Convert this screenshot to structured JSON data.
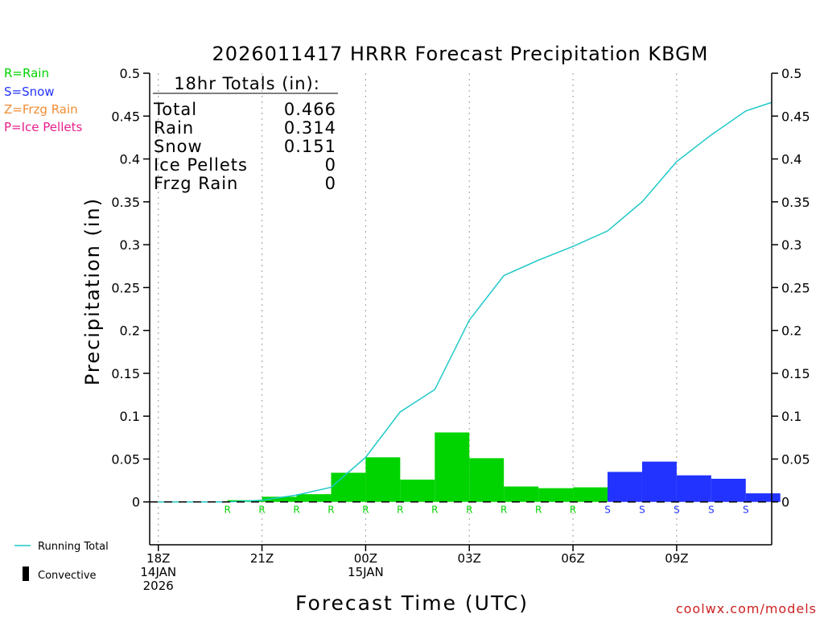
{
  "colors": {
    "rain": "#00d400",
    "snow": "#2233ff",
    "frzg": "#f08c32",
    "ice": "#e8208c",
    "running_total": "#1ec8c8",
    "watermark": "#cc2222",
    "grid": "#aaaaaa",
    "axis": "#000000"
  },
  "legend": {
    "rain": "R=Rain",
    "snow": "S=Snow",
    "frzg": "Z=Frzg Rain",
    "ice": "P=Ice Pellets",
    "running_total": "Running Total",
    "convective": "Convective"
  },
  "watermark": "coolwx.com/models",
  "totals": {
    "header": "18hr Totals (in):",
    "rows": [
      {
        "label": "Total",
        "value": "0.466"
      },
      {
        "label": "Rain",
        "value": "0.314"
      },
      {
        "label": "Snow",
        "value": "0.151"
      },
      {
        "label": "Ice Pellets",
        "value": "0"
      },
      {
        "label": "Frzg Rain",
        "value": "0"
      }
    ]
  },
  "chart_data": {
    "type": "bar",
    "title": "2026011417 HRRR Forecast Precipitation KBGM",
    "xlabel": "Forecast Time (UTC)",
    "ylabel": "Precipitation (in)",
    "ylim": [
      -0.05,
      0.5
    ],
    "yticks": [
      0,
      0.05,
      0.1,
      0.15,
      0.2,
      0.25,
      0.3,
      0.35,
      0.4,
      0.45,
      0.5
    ],
    "ytick_labels": [
      "0",
      "0.05",
      "0.1",
      "0.15",
      "0.2",
      "0.25",
      "0.3",
      "0.35",
      "0.4",
      "0.45",
      "0.5"
    ],
    "xlim": [
      -0.25,
      17.75
    ],
    "x_ticks": [
      {
        "x": 0,
        "lines": [
          "18Z",
          "14JAN",
          "2026"
        ]
      },
      {
        "x": 3,
        "lines": [
          "21Z"
        ]
      },
      {
        "x": 6,
        "lines": [
          "00Z",
          "15JAN"
        ]
      },
      {
        "x": 9,
        "lines": [
          "03Z"
        ]
      },
      {
        "x": 12,
        "lines": [
          "06Z"
        ]
      },
      {
        "x": 15,
        "lines": [
          "09Z"
        ]
      }
    ],
    "hours": [
      1,
      2,
      3,
      4,
      5,
      6,
      7,
      8,
      9,
      10,
      11,
      12,
      13,
      14,
      15,
      16,
      17,
      18
    ],
    "hourly_precip": [
      0.0,
      0.0,
      0.002,
      0.006,
      0.009,
      0.034,
      0.052,
      0.026,
      0.081,
      0.051,
      0.018,
      0.016,
      0.017,
      0.035,
      0.047,
      0.031,
      0.027,
      0.01
    ],
    "ptype": [
      "",
      "",
      "R",
      "R",
      "R",
      "R",
      "R",
      "R",
      "R",
      "R",
      "R",
      "R",
      "R",
      "S",
      "S",
      "S",
      "S",
      "S"
    ],
    "running_total_x": [
      0,
      1,
      2,
      3,
      4,
      5,
      6,
      7,
      8,
      9,
      10,
      11,
      12,
      13,
      14,
      15,
      16,
      17,
      17.75
    ],
    "running_total": [
      0,
      0.0,
      0.0,
      0.002,
      0.008,
      0.017,
      0.052,
      0.105,
      0.131,
      0.212,
      0.264,
      0.282,
      0.298,
      0.316,
      0.35,
      0.397,
      0.428,
      0.456,
      0.466
    ]
  }
}
